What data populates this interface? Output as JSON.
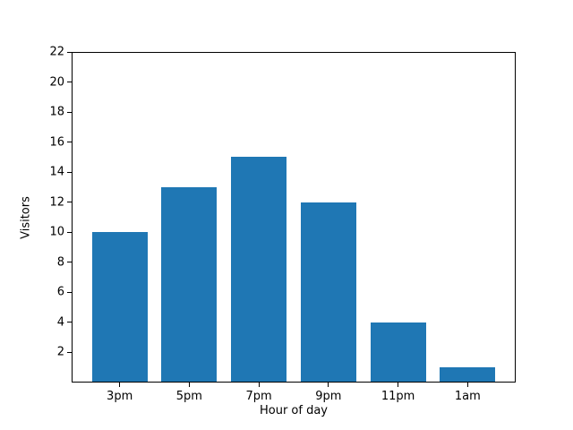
{
  "chart_data": {
    "type": "bar",
    "categories": [
      "3pm",
      "5pm",
      "7pm",
      "9pm",
      "11pm",
      "1am"
    ],
    "values": [
      10,
      13,
      15,
      12,
      4,
      1
    ],
    "title": "",
    "xlabel": "Hour of day",
    "ylabel": "Visitors",
    "ylim": [
      0,
      22
    ],
    "yticks": [
      2,
      4,
      6,
      8,
      10,
      12,
      14,
      16,
      18,
      20,
      22
    ],
    "bar_color": "#1f77b4",
    "axis_color": "#000000",
    "background_color": "#ffffff",
    "grid": false,
    "legend": null,
    "bar_width_fraction": 0.8,
    "x_margin_fraction": 0.05
  }
}
